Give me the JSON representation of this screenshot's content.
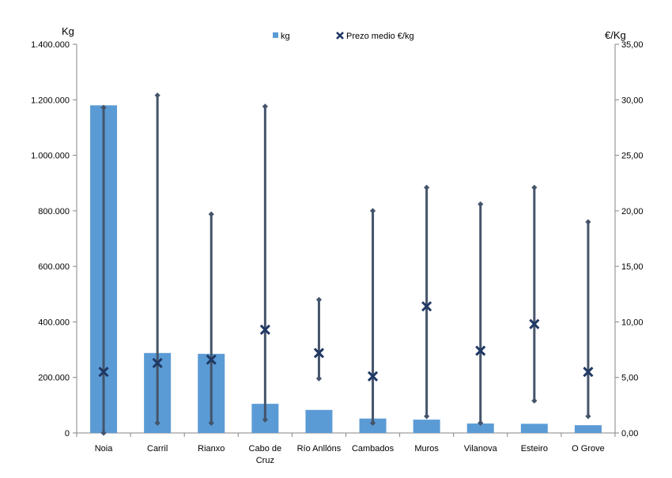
{
  "chart_data": {
    "type": "bar",
    "categories": [
      "Noia",
      "Carril",
      "Rianxo",
      "Cabo de Cruz",
      "Río Anllóns",
      "Cambados",
      "Muros",
      "Vilanova",
      "Esteiro",
      "O Grove"
    ],
    "category_lines": [
      [
        "Noia"
      ],
      [
        "Carril"
      ],
      [
        "Rianxo"
      ],
      [
        "Cabo de",
        "Cruz"
      ],
      [
        "Río Anllóns"
      ],
      [
        "Cambados"
      ],
      [
        "Muros"
      ],
      [
        "Vilanova"
      ],
      [
        "Esteiro"
      ],
      [
        "O Grove"
      ]
    ],
    "series": [
      {
        "name": "kg",
        "type": "bar",
        "axis": "left",
        "color": "#5b9bd5",
        "values": [
          1180000,
          288000,
          285000,
          105000,
          83000,
          52000,
          48000,
          34000,
          33000,
          28000
        ]
      },
      {
        "name": "Prezo medio €/kg",
        "type": "marker-x",
        "axis": "right",
        "color": "#1f3864",
        "values": [
          5.5,
          6.3,
          6.6,
          9.3,
          7.2,
          5.1,
          11.4,
          7.4,
          9.8,
          5.5
        ]
      }
    ],
    "price_range": {
      "axis": "right",
      "color": "#44546a",
      "min": [
        0.0,
        0.9,
        0.9,
        1.2,
        4.9,
        0.9,
        1.5,
        0.9,
        2.9,
        1.5
      ],
      "max": [
        29.3,
        30.4,
        19.7,
        29.4,
        12.0,
        20.0,
        22.1,
        20.6,
        22.1,
        19.0
      ]
    },
    "y_left": {
      "label": "Kg",
      "range": [
        0,
        1400000
      ],
      "ticks": [
        0,
        200000,
        400000,
        600000,
        800000,
        1000000,
        1200000,
        1400000
      ],
      "tick_labels": [
        "0",
        "200.000",
        "400.000",
        "600.000",
        "800.000",
        "1.000.000",
        "1.200.000",
        "1.400.000"
      ]
    },
    "y_right": {
      "label": "€/Kg",
      "range": [
        0,
        35
      ],
      "ticks": [
        0,
        5,
        10,
        15,
        20,
        25,
        30,
        35
      ],
      "tick_labels": [
        "0,00",
        "5,00",
        "10,00",
        "15,00",
        "20,00",
        "25,00",
        "30,00",
        "35,00"
      ]
    },
    "legend": {
      "placement": "top-center",
      "items": [
        {
          "label": "kg",
          "symbol": "square",
          "color": "#5b9bd5"
        },
        {
          "label": "Prezo medio €/kg",
          "symbol": "x",
          "color": "#1f3864"
        }
      ]
    },
    "grid": false
  }
}
